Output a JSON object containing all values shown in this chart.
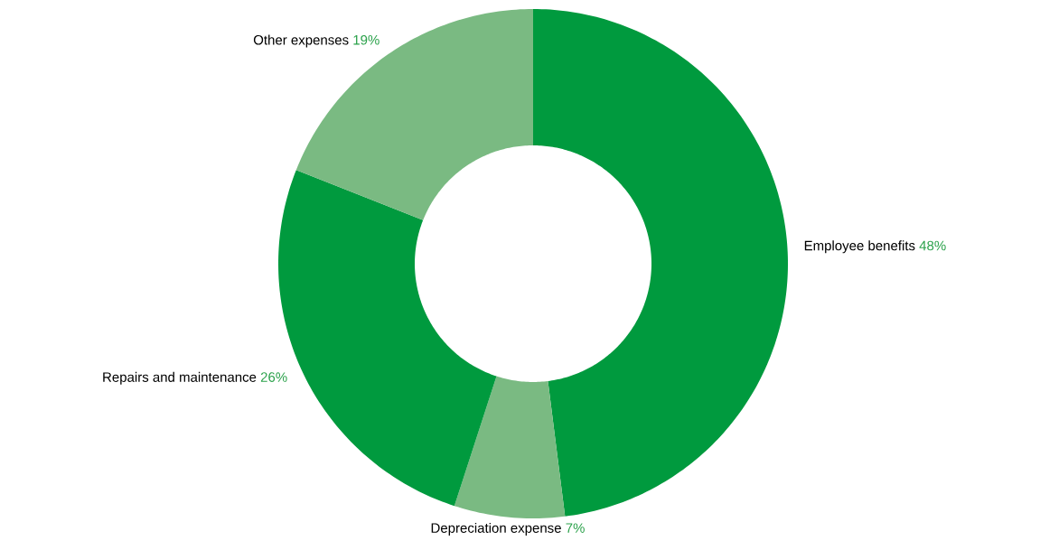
{
  "chart_data": {
    "type": "donut",
    "categories": [
      "Employee benefits",
      "Depreciation expense",
      "Repairs and maintenance",
      "Other expenses"
    ],
    "values": [
      48,
      7,
      26,
      19
    ],
    "value_labels": [
      "48%",
      "7%",
      "26%",
      "19%"
    ],
    "colors": [
      "#009a3e",
      "#7aba82",
      "#009a3e",
      "#7aba82"
    ]
  }
}
